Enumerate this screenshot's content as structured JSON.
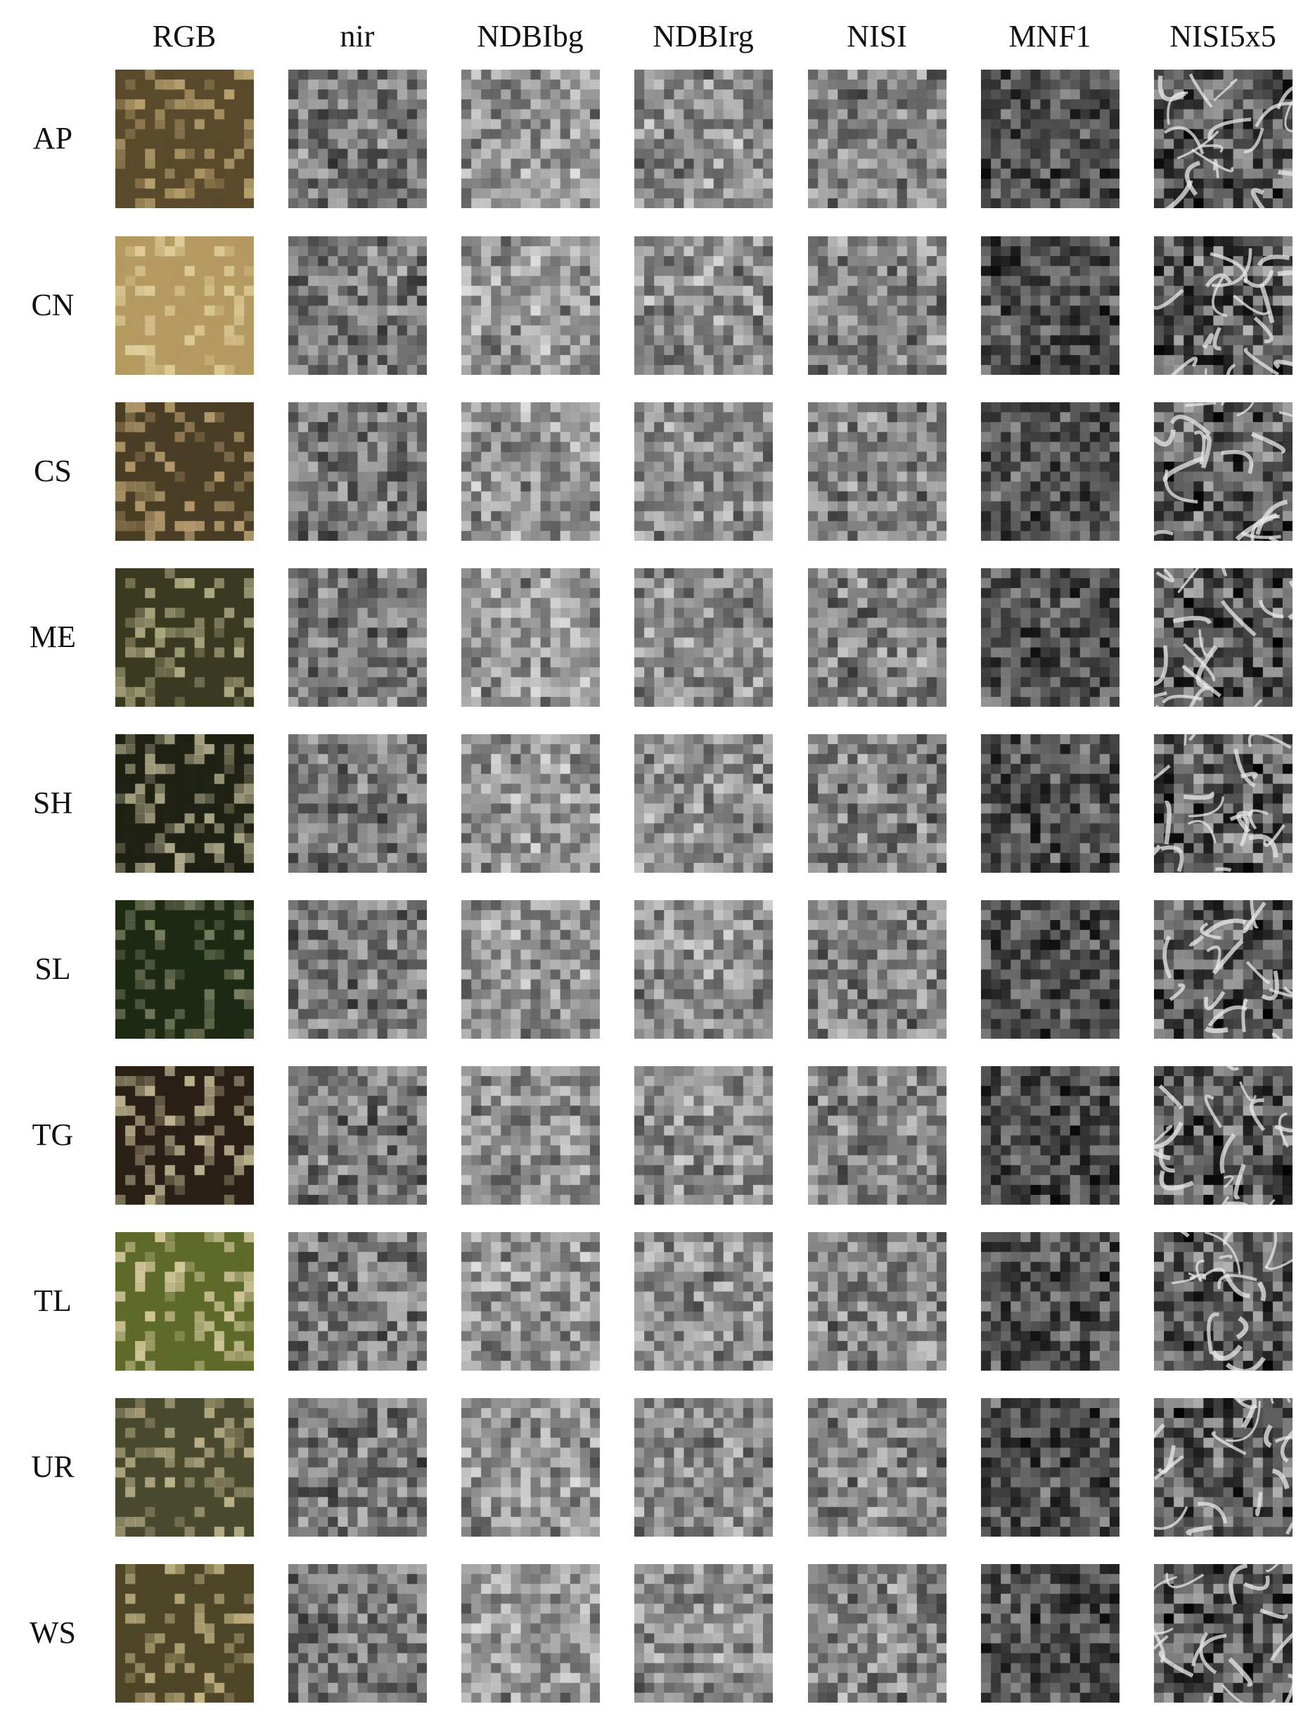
{
  "figure": {
    "columns": [
      "RGB",
      "nir",
      "NDBIbg",
      "NDBIrg",
      "NISI",
      "MNF1",
      "NISI5x5"
    ],
    "rows": [
      "AP",
      "CN",
      "CS",
      "ME",
      "SH",
      "SL",
      "TG",
      "TL",
      "UR",
      "WS"
    ]
  },
  "palette": {
    "rgb_base": [
      "#5a4a2c",
      "#b59a62",
      "#4a3e26",
      "#3a3a22",
      "#1f2214",
      "#1e2a14",
      "#2a2016",
      "#5e6a2a",
      "#4a4a30",
      "#4e4628"
    ],
    "rgb_light": [
      "#c9b07a",
      "#e8d7a4",
      "#c4a878",
      "#c8c49a",
      "#c9c2a0",
      "#8c9070",
      "#d8cfa8",
      "#e6d7b0",
      "#d4c89e",
      "#d6c694"
    ]
  }
}
